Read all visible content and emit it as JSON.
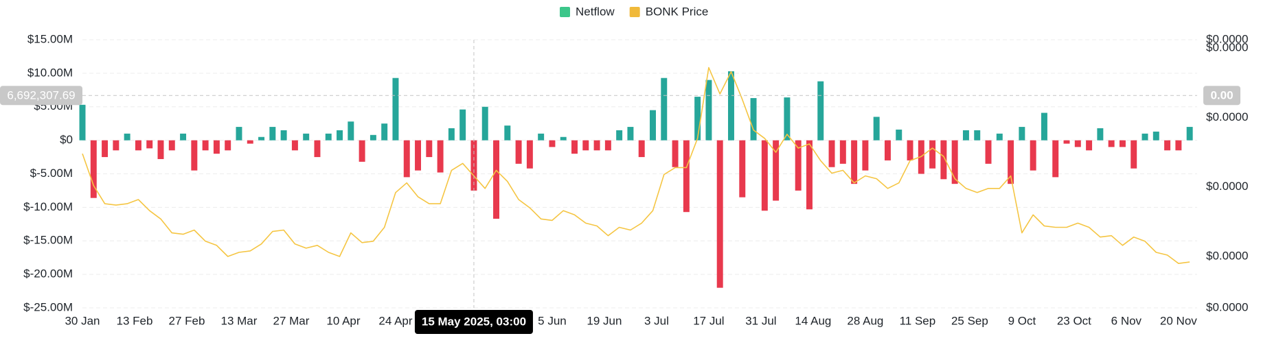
{
  "chart_data": {
    "type": "bar_line",
    "x": [
      "2025-01-30",
      "2025-02-02",
      "2025-02-05",
      "2025-02-08",
      "2025-02-11",
      "2025-02-14",
      "2025-02-17",
      "2025-02-20",
      "2025-02-23",
      "2025-02-26",
      "2025-03-01",
      "2025-03-04",
      "2025-03-07",
      "2025-03-10",
      "2025-03-13",
      "2025-03-16",
      "2025-03-19",
      "2025-03-22",
      "2025-03-25",
      "2025-03-28",
      "2025-03-31",
      "2025-04-03",
      "2025-04-06",
      "2025-04-09",
      "2025-04-12",
      "2025-04-15",
      "2025-04-18",
      "2025-04-21",
      "2025-04-24",
      "2025-04-27",
      "2025-04-30",
      "2025-05-03",
      "2025-05-06",
      "2025-05-09",
      "2025-05-12",
      "2025-05-15",
      "2025-05-18",
      "2025-05-21",
      "2025-05-24",
      "2025-05-27",
      "2025-05-30",
      "2025-06-02",
      "2025-06-05",
      "2025-06-08",
      "2025-06-11",
      "2025-06-14",
      "2025-06-17",
      "2025-06-20",
      "2025-06-23",
      "2025-06-26",
      "2025-06-29",
      "2025-07-02",
      "2025-07-05",
      "2025-07-08",
      "2025-07-11",
      "2025-07-14",
      "2025-07-17",
      "2025-07-20",
      "2025-07-23",
      "2025-07-26",
      "2025-07-29",
      "2025-08-01",
      "2025-08-04",
      "2025-08-07",
      "2025-08-10",
      "2025-08-13",
      "2025-08-16",
      "2025-08-19",
      "2025-08-22",
      "2025-08-25",
      "2025-08-28",
      "2025-08-31",
      "2025-09-03",
      "2025-09-06",
      "2025-09-09",
      "2025-09-12",
      "2025-09-15",
      "2025-09-18",
      "2025-09-21",
      "2025-09-24",
      "2025-09-27",
      "2025-09-30",
      "2025-10-03",
      "2025-10-06",
      "2025-10-09",
      "2025-10-12",
      "2025-10-15",
      "2025-10-18",
      "2025-10-21",
      "2025-10-24",
      "2025-10-27",
      "2025-10-30",
      "2025-11-02",
      "2025-11-05",
      "2025-11-08",
      "2025-11-11",
      "2025-11-14",
      "2025-11-17",
      "2025-11-20",
      "2025-11-23"
    ],
    "series": [
      {
        "name": "Netflow",
        "color": "#26a69a",
        "negative_color": "#e8394d",
        "legend_color": "#3cc68a",
        "values": [
          5300000,
          -8600000,
          -2500000,
          -1500000,
          1000000,
          -1500000,
          -1200000,
          -2800000,
          -1500000,
          1000000,
          -4500000,
          -1500000,
          -2000000,
          -1500000,
          2000000,
          -500000,
          500000,
          2000000,
          1500000,
          -1500000,
          1000000,
          -2500000,
          1000000,
          1500000,
          2800000,
          -3200000,
          800000,
          2500000,
          9300000,
          -5500000,
          -4500000,
          -2500000,
          -4800000,
          1800000,
          4600000,
          -7500000,
          5000000,
          -11700000,
          2200000,
          -3500000,
          -4200000,
          1000000,
          -1000000,
          500000,
          -2000000,
          -1500000,
          -1500000,
          -1500000,
          1500000,
          2000000,
          -2500000,
          4500000,
          9300000,
          -4000000,
          -10700000,
          6500000,
          9000000,
          -22000000,
          10300000,
          -8500000,
          6300000,
          -10500000,
          -9000000,
          6400000,
          -7500000,
          -10300000,
          8800000,
          -4000000,
          -3500000,
          -6500000,
          -4500000,
          3500000,
          -3000000,
          1600000,
          -3000000,
          -5000000,
          -4200000,
          -5800000,
          -6500000,
          1500000,
          1500000,
          -3500000,
          1000000,
          -6500000,
          2000000,
          -4500000,
          4100000,
          -5500000,
          -500000,
          -1000000,
          -1500000,
          1800000,
          -1000000,
          -1000000,
          -4200000,
          1000000,
          1300000,
          -1500000,
          -1500000,
          2000000
        ]
      },
      {
        "name": "BONK Price",
        "color": "#f5c542",
        "legend_color": "#f0b93a",
        "axis": "y2",
        "values": [
          1.74e-05,
          1.51e-05,
          1.38e-05,
          1.37e-05,
          1.38e-05,
          1.41e-05,
          1.33e-05,
          1.27e-05,
          1.17e-05,
          1.16e-05,
          1.19e-05,
          1.11e-05,
          1.08e-05,
          1e-05,
          1.03e-05,
          1.04e-05,
          1.09e-05,
          1.18e-05,
          1.19e-05,
          1.09e-05,
          1.06e-05,
          1.08e-05,
          1.03e-05,
          1e-05,
          1.17e-05,
          1.1e-05,
          1.11e-05,
          1.21e-05,
          1.46e-05,
          1.53e-05,
          1.43e-05,
          1.38e-05,
          1.38e-05,
          1.62e-05,
          1.67e-05,
          1.58e-05,
          1.49e-05,
          1.62e-05,
          1.54e-05,
          1.41e-05,
          1.35e-05,
          1.27e-05,
          1.26e-05,
          1.33e-05,
          1.3e-05,
          1.24e-05,
          1.22e-05,
          1.15e-05,
          1.21e-05,
          1.19e-05,
          1.24e-05,
          1.33e-05,
          1.59e-05,
          1.64e-05,
          1.64e-05,
          1.85e-05,
          2.36e-05,
          2.17e-05,
          2.33e-05,
          2.13e-05,
          1.91e-05,
          1.85e-05,
          1.75e-05,
          1.88e-05,
          1.78e-05,
          1.81e-05,
          1.69e-05,
          1.6e-05,
          1.62e-05,
          1.53e-05,
          1.58e-05,
          1.56e-05,
          1.49e-05,
          1.53e-05,
          1.69e-05,
          1.72e-05,
          1.78e-05,
          1.72e-05,
          1.56e-05,
          1.49e-05,
          1.46e-05,
          1.49e-05,
          1.49e-05,
          1.58e-05,
          1.17e-05,
          1.3e-05,
          1.22e-05,
          1.21e-05,
          1.21e-05,
          1.24e-05,
          1.21e-05,
          1.14e-05,
          1.15e-05,
          1.08e-05,
          1.14e-05,
          1.11e-05,
          1.03e-05,
          1.01e-05,
          9.5e-06,
          9.6e-06
        ]
      }
    ],
    "xlim": [
      "2025-01-30",
      "2025-11-25"
    ],
    "xticks": [
      {
        "value": "2025-01-30",
        "label": "30 Jan"
      },
      {
        "value": "2025-02-13",
        "label": "13 Feb"
      },
      {
        "value": "2025-02-27",
        "label": "27 Feb"
      },
      {
        "value": "2025-03-13",
        "label": "13 Mar"
      },
      {
        "value": "2025-03-27",
        "label": "27 Mar"
      },
      {
        "value": "2025-04-10",
        "label": "10 Apr"
      },
      {
        "value": "2025-04-24",
        "label": "24 Apr"
      },
      {
        "value": "2025-06-05",
        "label": "5 Jun"
      },
      {
        "value": "2025-06-19",
        "label": "19 Jun"
      },
      {
        "value": "2025-07-03",
        "label": "3 Jul"
      },
      {
        "value": "2025-07-17",
        "label": "17 Jul"
      },
      {
        "value": "2025-07-31",
        "label": "31 Jul"
      },
      {
        "value": "2025-08-14",
        "label": "14 Aug"
      },
      {
        "value": "2025-08-28",
        "label": "28 Aug"
      },
      {
        "value": "2025-09-11",
        "label": "11 Sep"
      },
      {
        "value": "2025-09-25",
        "label": "25 Sep"
      },
      {
        "value": "2025-10-09",
        "label": "9 Oct"
      },
      {
        "value": "2025-10-23",
        "label": "23 Oct"
      },
      {
        "value": "2025-11-06",
        "label": "6 Nov"
      },
      {
        "value": "2025-11-20",
        "label": "20 Nov"
      }
    ],
    "ylim": [
      -25000000,
      15000000
    ],
    "yticks": [
      {
        "value": -25000000,
        "label": "$-25.00M"
      },
      {
        "value": -20000000,
        "label": "$-20.00M"
      },
      {
        "value": -15000000,
        "label": "$-15.00M"
      },
      {
        "value": -10000000,
        "label": "$-10.00M"
      },
      {
        "value": -5000000,
        "label": "$-5.00M"
      },
      {
        "value": 0,
        "label": "$0"
      },
      {
        "value": 5000000,
        "label": "$5.00M"
      },
      {
        "value": 10000000,
        "label": "$10.00M"
      },
      {
        "value": 15000000,
        "label": "$15.00M"
      }
    ],
    "y2lim": [
      6.3e-06,
      2.56e-05
    ],
    "y2ticks": [
      {
        "value": 6.3e-06,
        "label": "$0.0000"
      },
      {
        "value": 1e-05,
        "label": "$0.0000"
      },
      {
        "value": 1.5e-05,
        "label": "$0.0000"
      },
      {
        "value": 2e-05,
        "label": "$0.0000"
      },
      {
        "value": 2.5e-05,
        "label": "$0.0000"
      },
      {
        "value": 2.56e-05,
        "label": "$0.0000"
      }
    ],
    "grid": true,
    "legend": "top",
    "crosshair": {
      "x": "2025-05-15",
      "x_label": "15 May 2025, 03:00",
      "y": 6692307.69,
      "y_label": "6,692,307.69",
      "y2_label": "0.00"
    }
  }
}
